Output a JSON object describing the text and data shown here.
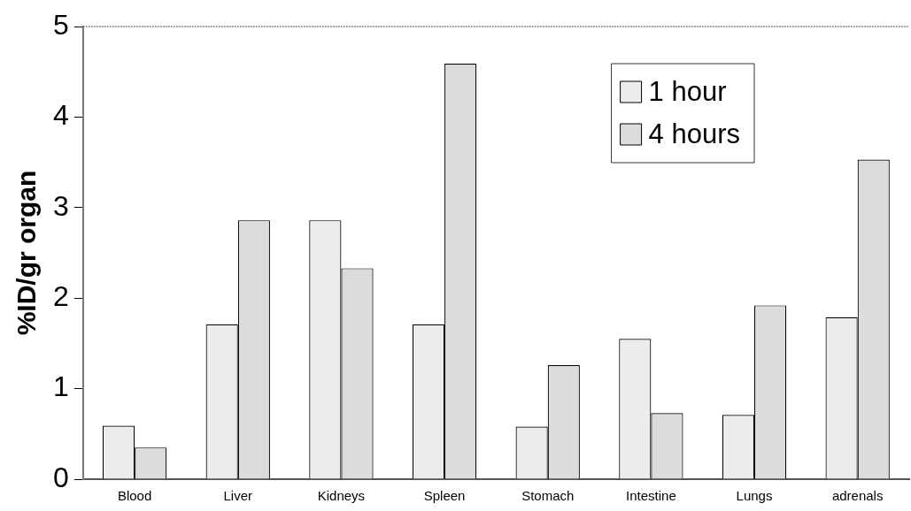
{
  "chart_data": {
    "type": "bar",
    "ylabel": "%ID/gr organ",
    "categories": [
      "Blood",
      "Liver",
      "Kidneys",
      "Spleen",
      "Stomach",
      "Intestine",
      "Lungs",
      "adrenals"
    ],
    "series": [
      {
        "name": "1 hour",
        "color": "#ececec",
        "values": [
          0.59,
          1.71,
          2.86,
          1.71,
          0.58,
          1.55,
          0.71,
          1.79
        ]
      },
      {
        "name": "4 hours",
        "color": "#dcdcdc",
        "values": [
          0.35,
          2.86,
          2.33,
          4.59,
          1.26,
          0.73,
          1.92,
          3.53
        ]
      }
    ],
    "ylim": [
      0,
      5
    ],
    "yticks": [
      0,
      1,
      2,
      3,
      4,
      5
    ],
    "legend": "top right"
  }
}
